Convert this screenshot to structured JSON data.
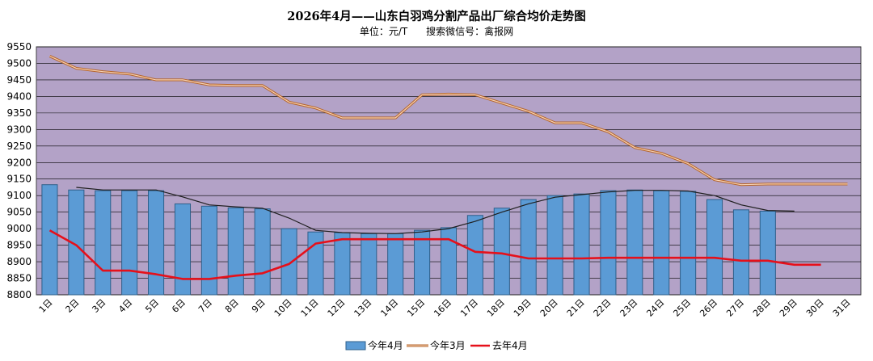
{
  "title": "2026年4月——山东白羽鸡分割产品出厂综合均价走势图",
  "subtitle": "单位：元/T      搜索微信号：禽报网",
  "colors": {
    "plot_bg": "#b3a2c7",
    "grid": "#000000",
    "bar_fill": "#5b9bd5",
    "bar_stroke": "#2e5f8a",
    "bar_trend": "#1f1f1f",
    "march_line": "#e59b5e",
    "last_year_line": "#e6101a"
  },
  "chart_data": {
    "type": "bar",
    "categories": [
      "1日",
      "2日",
      "3日",
      "4日",
      "5日",
      "6日",
      "7日",
      "8日",
      "9日",
      "10日",
      "11日",
      "12日",
      "13日",
      "14日",
      "15日",
      "16日",
      "17日",
      "18日",
      "19日",
      "20日",
      "21日",
      "22日",
      "23日",
      "24日",
      "25日",
      "26日",
      "27日",
      "28日",
      "29日",
      "30日",
      "31日"
    ],
    "ylim": [
      8800,
      9550
    ],
    "yticks": [
      8800,
      8850,
      8900,
      8950,
      9000,
      9050,
      9100,
      9150,
      9200,
      9250,
      9300,
      9350,
      9400,
      9450,
      9500,
      9550
    ],
    "grid": true,
    "legend_position": "bottom",
    "series": [
      {
        "name": "今年4月",
        "type": "bar",
        "values": [
          9133,
          9117,
          9115,
          9115,
          9115,
          9075,
          9068,
          9063,
          9060,
          9000,
          8990,
          8988,
          8985,
          8985,
          8995,
          9003,
          9040,
          9062,
          9088,
          9100,
          9105,
          9115,
          9117,
          9115,
          9113,
          9088,
          9057,
          9053,
          null,
          null,
          null
        ],
        "trend_values": [
          null,
          9125,
          9117,
          9117,
          9117,
          9096,
          9072,
          9066,
          9062,
          9032,
          8995,
          8988,
          8986,
          8985,
          8990,
          9000,
          9022,
          9050,
          9075,
          9095,
          9103,
          9111,
          9116,
          9116,
          9114,
          9100,
          9072,
          9055,
          9053,
          null,
          null
        ]
      },
      {
        "name": "今年3月",
        "type": "line",
        "values": [
          9522,
          9485,
          9475,
          9468,
          9450,
          9450,
          9435,
          9433,
          9433,
          9383,
          9365,
          9335,
          9335,
          9335,
          9405,
          9407,
          9405,
          9380,
          9355,
          9320,
          9320,
          9293,
          9245,
          9228,
          9197,
          9148,
          9133,
          9135,
          9135,
          9135,
          9135
        ]
      },
      {
        "name": "去年4月",
        "type": "line",
        "values": [
          8995,
          8950,
          8873,
          8873,
          8862,
          8848,
          8848,
          8858,
          8865,
          8893,
          8955,
          8968,
          8968,
          8968,
          8968,
          8968,
          8930,
          8925,
          8910,
          8910,
          8910,
          8912,
          8912,
          8912,
          8912,
          8912,
          8903,
          8903,
          8891,
          8891,
          null
        ]
      }
    ]
  }
}
